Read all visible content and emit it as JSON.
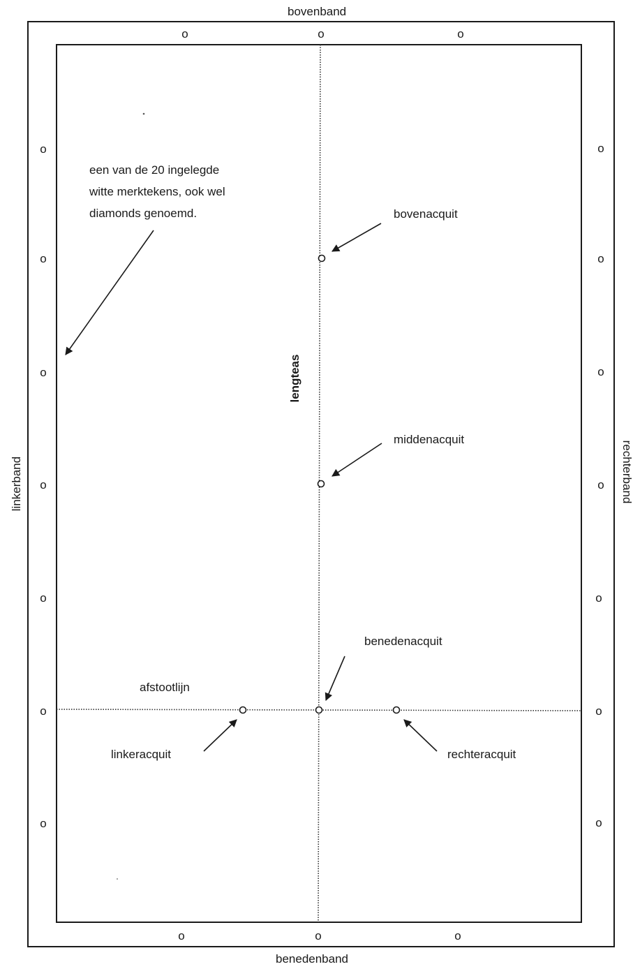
{
  "labels": {
    "top_rail": "bovenband",
    "bottom_rail": "benedenband",
    "left_rail": "linkerband",
    "right_rail": "rechterband",
    "long_axis": "lengteas",
    "baulk_line": "afstootlijn",
    "top_spot": "bovenacquit",
    "middle_spot": "middenacquit",
    "bottom_spot": "benedenacquit",
    "left_spot": "linkeracquit",
    "right_spot": "rechteracquit"
  },
  "diamond_note": {
    "line1": "een van de 20 ingelegde",
    "line2": "witte merktekens, ook wel",
    "line3": "diamonds genoemd."
  },
  "marker_glyph": "o",
  "colors": {
    "ink": "#1a1a1a",
    "paper": "#ffffff"
  }
}
